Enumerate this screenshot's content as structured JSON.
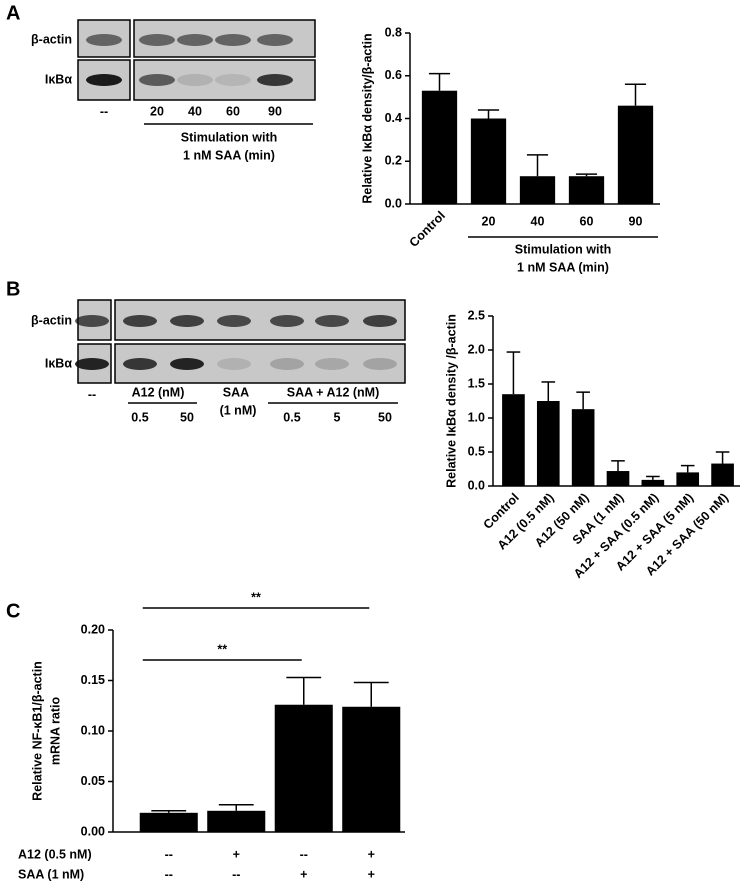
{
  "panels": [
    "A",
    "B",
    "C"
  ],
  "blots": [
    {
      "rows": [
        "β-actin",
        "IκBα"
      ],
      "lanes": [
        "--",
        "20",
        "40",
        "60",
        "90"
      ],
      "group_label": [
        "Stimulation with",
        "1 nM SAA (min)"
      ]
    },
    {
      "rows": [
        "β-actin",
        "IκBα"
      ],
      "control": "--",
      "a12_label": "A12 (nM)",
      "a12_lanes": [
        "0.5",
        "50"
      ],
      "saa_label": [
        "SAA",
        "(1 nM)"
      ],
      "combo_label": "SAA + A12 (nM)",
      "combo_lanes": [
        "0.5",
        "5",
        "50"
      ]
    }
  ],
  "chart_data": [
    {
      "type": "bar",
      "ylabel": "Relative IκBα density/β-actin",
      "categories": [
        "Control",
        "20",
        "40",
        "60",
        "90"
      ],
      "values": [
        0.53,
        0.4,
        0.13,
        0.13,
        0.46
      ],
      "errors": [
        0.08,
        0.04,
        0.1,
        0.01,
        0.1
      ],
      "group_label": [
        "Stimulation with",
        "1 nM SAA (min)"
      ],
      "color": "#000000",
      "ylim": [
        0,
        0.8
      ],
      "yticks": [
        {
          "value": 0,
          "label": "0.0"
        },
        0.2,
        0.4,
        0.6,
        0.8
      ]
    },
    {
      "type": "bar",
      "ylabel": "Relative IκBα density /β-actin",
      "categories": [
        "Control",
        "A12 (0.5 nM)",
        "A12 (50 nM)",
        "SAA (1 nM)",
        "A12 + SAA (0.5 nM)",
        "A12 + SAA (5 nM)",
        "A12 + SAA (50 nM)"
      ],
      "values": [
        1.35,
        1.25,
        1.13,
        0.22,
        0.09,
        0.2,
        0.33
      ],
      "errors": [
        0.62,
        0.28,
        0.25,
        0.15,
        0.05,
        0.1,
        0.17
      ],
      "color": "#000000",
      "ylim": [
        0,
        2.5
      ],
      "yticks": [
        {
          "value": 0,
          "label": "0.0"
        },
        0.5,
        {
          "value": 1,
          "label": "1.0"
        },
        1.5,
        {
          "value": 2,
          "label": "2.0"
        },
        2.5
      ]
    },
    {
      "type": "bar",
      "ylabel": [
        "Relative NF-κB1/β-actin",
        "mRNA ratio"
      ],
      "categories": [
        null,
        null,
        null,
        null
      ],
      "values": [
        0.019,
        0.021,
        0.126,
        0.124
      ],
      "errors": [
        0.002,
        0.006,
        0.027,
        0.024
      ],
      "color": "#000000",
      "ylim": [
        0,
        0.2
      ],
      "yticks": [
        {
          "value": 0,
          "label": "0.00"
        },
        {
          "value": 0.05,
          "label": "0.05"
        },
        {
          "value": 0.1,
          "label": "0.10"
        },
        {
          "value": 0.15,
          "label": "0.15"
        },
        {
          "value": 0.2,
          "label": "0.20"
        }
      ],
      "significance": [
        "**",
        "**"
      ],
      "conditions": [
        {
          "label": "A12 (0.5 nM)",
          "marks": [
            "--",
            "+",
            "--",
            "+"
          ]
        },
        {
          "label": "SAA (1 nM)",
          "marks": [
            "--",
            "--",
            "+",
            "+"
          ]
        }
      ]
    }
  ]
}
